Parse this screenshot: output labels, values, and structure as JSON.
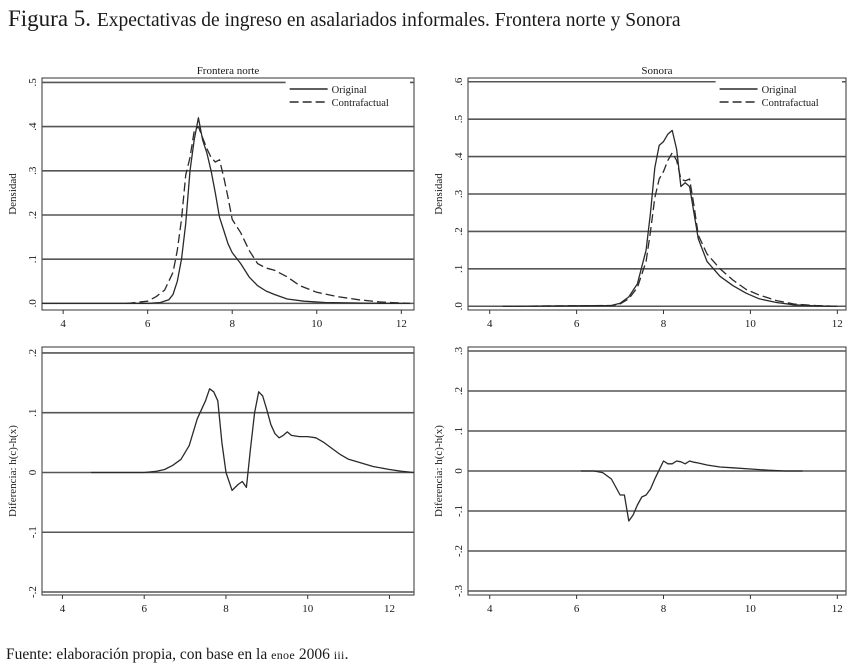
{
  "figure": {
    "title_prefix": "Figura 5.",
    "title_text": "Expectativas de ingreso en asalariados informales. Frontera norte y Sonora",
    "source_prefix": "Fuente: elaboración propia, con base en la",
    "source_abbr": "enoe",
    "source_year": "2006",
    "source_suffix": "iii",
    "source_end": "."
  },
  "colors": {
    "line": "#2a2a2a",
    "grid": "#555555",
    "background": "#ffffff"
  },
  "chart_data": [
    {
      "id": "fn-density",
      "type": "line",
      "title": "Frontera norte",
      "xlabel": "",
      "ylabel": "Densidad",
      "xlim": [
        3.5,
        12.3
      ],
      "ylim": [
        -0.015,
        0.51
      ],
      "xticks": [
        4,
        6,
        8,
        10,
        12
      ],
      "yticks": [
        0,
        0.1,
        0.2,
        0.3,
        0.4,
        0.5
      ],
      "ytick_labels": [
        ".0",
        ".1",
        ".2",
        ".3",
        ".4",
        ".5"
      ],
      "grid": true,
      "legend": "top-right",
      "series": [
        {
          "name": "Original",
          "style": "solid",
          "x": [
            3.5,
            6.0,
            6.3,
            6.5,
            6.6,
            6.7,
            6.8,
            6.9,
            7.0,
            7.1,
            7.2,
            7.3,
            7.4,
            7.5,
            7.6,
            7.7,
            7.8,
            7.9,
            8.0,
            8.2,
            8.4,
            8.6,
            8.8,
            9.0,
            9.3,
            9.7,
            10.2,
            10.8,
            11.5,
            12.2
          ],
          "y": [
            0.0,
            0.0,
            0.002,
            0.008,
            0.02,
            0.05,
            0.1,
            0.18,
            0.3,
            0.37,
            0.42,
            0.37,
            0.34,
            0.3,
            0.25,
            0.195,
            0.165,
            0.135,
            0.115,
            0.09,
            0.06,
            0.04,
            0.028,
            0.02,
            0.01,
            0.005,
            0.002,
            0.001,
            0.0,
            0.0
          ]
        },
        {
          "name": "Contrafactual",
          "style": "dashed",
          "x": [
            5.5,
            6.0,
            6.2,
            6.4,
            6.6,
            6.7,
            6.8,
            6.9,
            7.0,
            7.1,
            7.2,
            7.3,
            7.4,
            7.5,
            7.6,
            7.7,
            7.8,
            7.9,
            8.0,
            8.2,
            8.4,
            8.6,
            8.8,
            9.0,
            9.3,
            9.6,
            10.0,
            10.5,
            11.0,
            11.5,
            12.2
          ],
          "y": [
            0.0,
            0.005,
            0.015,
            0.03,
            0.07,
            0.12,
            0.19,
            0.29,
            0.33,
            0.39,
            0.4,
            0.375,
            0.35,
            0.33,
            0.32,
            0.325,
            0.285,
            0.24,
            0.19,
            0.16,
            0.12,
            0.09,
            0.08,
            0.075,
            0.06,
            0.04,
            0.025,
            0.015,
            0.008,
            0.003,
            0.0
          ]
        }
      ]
    },
    {
      "id": "so-density",
      "type": "line",
      "title": "Sonora",
      "xlabel": "",
      "ylabel": "Densidad",
      "xlim": [
        3.5,
        12.2
      ],
      "ylim": [
        -0.01,
        0.61
      ],
      "xticks": [
        4,
        6,
        8,
        10,
        12
      ],
      "yticks": [
        0,
        0.1,
        0.2,
        0.3,
        0.4,
        0.5,
        0.6
      ],
      "ytick_labels": [
        ".0",
        ".1",
        ".2",
        ".3",
        ".4",
        ".5",
        ".6"
      ],
      "grid": true,
      "legend": "top-right",
      "series": [
        {
          "name": "Original",
          "style": "solid",
          "x": [
            4.3,
            6.8,
            7.0,
            7.2,
            7.4,
            7.6,
            7.7,
            7.8,
            7.9,
            8.0,
            8.1,
            8.2,
            8.3,
            8.4,
            8.5,
            8.6,
            8.7,
            8.8,
            9.0,
            9.3,
            9.6,
            9.9,
            10.2,
            10.6,
            11.0,
            11.5,
            12.0
          ],
          "y": [
            0.0,
            0.002,
            0.008,
            0.025,
            0.06,
            0.15,
            0.25,
            0.37,
            0.43,
            0.44,
            0.46,
            0.47,
            0.42,
            0.32,
            0.33,
            0.32,
            0.25,
            0.18,
            0.12,
            0.08,
            0.055,
            0.035,
            0.02,
            0.01,
            0.004,
            0.001,
            0.0
          ]
        },
        {
          "name": "Contrafactual",
          "style": "dashed",
          "x": [
            4.3,
            6.8,
            7.0,
            7.2,
            7.4,
            7.6,
            7.7,
            7.8,
            7.9,
            8.0,
            8.1,
            8.2,
            8.3,
            8.4,
            8.5,
            8.6,
            8.7,
            8.8,
            9.0,
            9.3,
            9.6,
            9.9,
            10.2,
            10.6,
            11.0,
            11.5,
            12.0
          ],
          "y": [
            0.0,
            0.002,
            0.006,
            0.02,
            0.05,
            0.12,
            0.2,
            0.29,
            0.34,
            0.36,
            0.39,
            0.41,
            0.39,
            0.34,
            0.335,
            0.34,
            0.27,
            0.19,
            0.14,
            0.1,
            0.07,
            0.045,
            0.03,
            0.015,
            0.006,
            0.002,
            0.0
          ]
        }
      ]
    },
    {
      "id": "fn-diff",
      "type": "line",
      "title": "",
      "xlabel": "",
      "ylabel": "Diferencia: h(c)-h(x)",
      "xlim": [
        3.5,
        12.6
      ],
      "ylim": [
        -0.205,
        0.21
      ],
      "xticks": [
        4,
        6,
        8,
        10,
        12
      ],
      "yticks": [
        -0.2,
        -0.1,
        0,
        0.1,
        0.2
      ],
      "ytick_labels": [
        "-.2",
        "-.1",
        "0",
        ".1",
        ".2"
      ],
      "grid": true,
      "legend": "none",
      "series": [
        {
          "name": "Diferencia",
          "style": "solid",
          "x": [
            4.7,
            6.0,
            6.3,
            6.5,
            6.7,
            6.9,
            7.1,
            7.3,
            7.5,
            7.6,
            7.7,
            7.8,
            7.9,
            8.0,
            8.15,
            8.3,
            8.4,
            8.5,
            8.6,
            8.7,
            8.8,
            8.9,
            9.0,
            9.1,
            9.2,
            9.3,
            9.4,
            9.5,
            9.6,
            9.8,
            10.0,
            10.2,
            10.4,
            10.6,
            10.8,
            11.0,
            11.3,
            11.6,
            12.0,
            12.3,
            12.6
          ],
          "y": [
            0.0,
            0.0,
            0.002,
            0.005,
            0.012,
            0.022,
            0.045,
            0.09,
            0.12,
            0.14,
            0.135,
            0.12,
            0.05,
            0.0,
            -0.03,
            -0.02,
            -0.015,
            -0.025,
            0.04,
            0.1,
            0.135,
            0.128,
            0.105,
            0.08,
            0.065,
            0.058,
            0.062,
            0.068,
            0.062,
            0.06,
            0.06,
            0.058,
            0.05,
            0.04,
            0.03,
            0.022,
            0.016,
            0.01,
            0.005,
            0.002,
            0.0
          ]
        }
      ]
    },
    {
      "id": "so-diff",
      "type": "line",
      "title": "",
      "xlabel": "",
      "ylabel": "Diferencia: h(c)-h(x)",
      "xlim": [
        3.5,
        12.2
      ],
      "ylim": [
        -0.31,
        0.31
      ],
      "xticks": [
        4,
        6,
        8,
        10,
        12
      ],
      "yticks": [
        -0.3,
        -0.2,
        -0.1,
        0,
        0.1,
        0.2,
        0.3
      ],
      "ytick_labels": [
        "-.3",
        "-.2",
        "-.1",
        "0",
        ".1",
        ".2",
        ".3"
      ],
      "grid": true,
      "legend": "none",
      "series": [
        {
          "name": "Diferencia",
          "style": "solid",
          "x": [
            6.1,
            6.4,
            6.6,
            6.8,
            7.0,
            7.1,
            7.2,
            7.3,
            7.4,
            7.5,
            7.6,
            7.7,
            7.8,
            7.9,
            8.0,
            8.1,
            8.2,
            8.3,
            8.4,
            8.5,
            8.6,
            8.7,
            8.8,
            9.0,
            9.3,
            9.6,
            10.0,
            10.4,
            10.8,
            11.2
          ],
          "y": [
            0.0,
            0.0,
            -0.004,
            -0.02,
            -0.06,
            -0.06,
            -0.125,
            -0.11,
            -0.085,
            -0.065,
            -0.06,
            -0.045,
            -0.02,
            0.003,
            0.025,
            0.018,
            0.018,
            0.025,
            0.023,
            0.018,
            0.025,
            0.022,
            0.02,
            0.015,
            0.01,
            0.008,
            0.005,
            0.002,
            0.0,
            0.0
          ]
        }
      ]
    }
  ]
}
